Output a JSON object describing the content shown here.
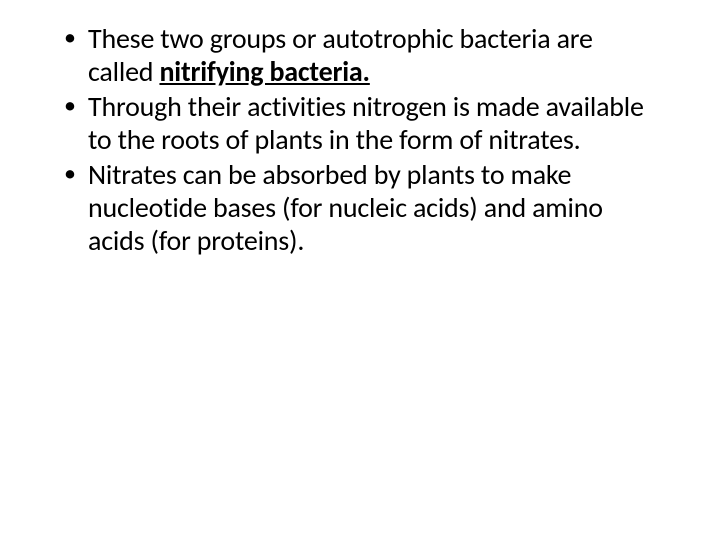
{
  "slide": {
    "background_color": "#ffffff",
    "text_color": "#000000",
    "font_family": "Calibri",
    "body_fontsize_pt": 28,
    "bullets": [
      {
        "leading_text": "These two groups or autotrophic bacteria are called ",
        "emphasis_text": "nitrifying bacteria.",
        "emphasis_style": {
          "bold": true,
          "underline": true
        },
        "trailing_text": ""
      },
      {
        "leading_text": "Through their activities nitrogen is made available to the roots of plants in the form of nitrates.",
        "emphasis_text": "",
        "trailing_text": ""
      },
      {
        "leading_text": "Nitrates can be absorbed by plants to make nucleotide bases (for nucleic acids) and amino acids (for proteins).",
        "emphasis_text": "",
        "trailing_text": ""
      }
    ]
  }
}
